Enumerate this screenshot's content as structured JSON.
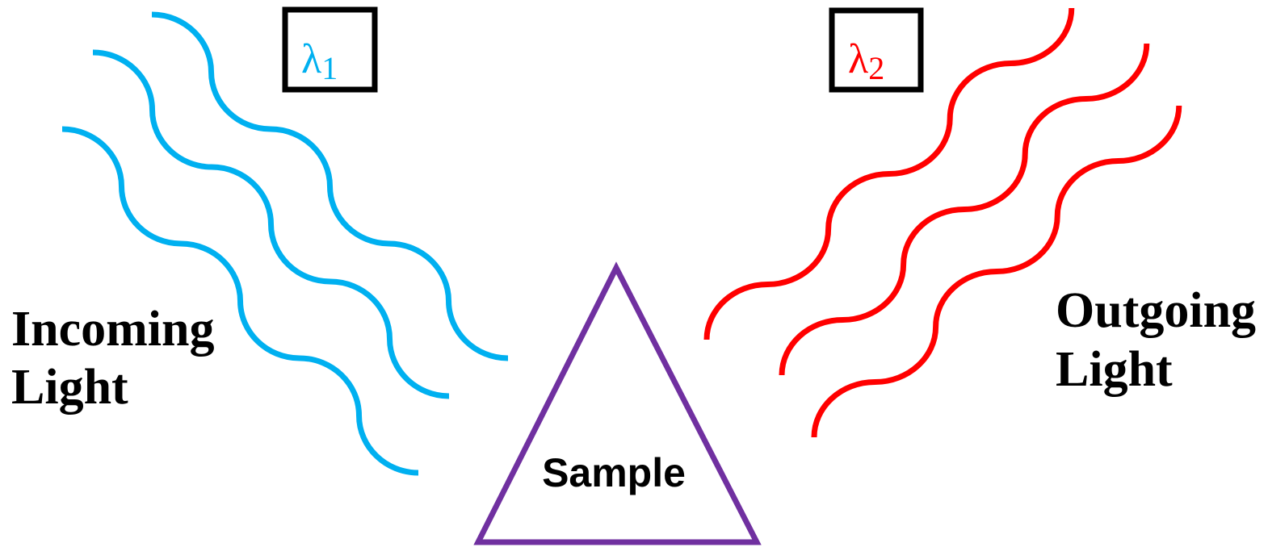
{
  "incoming": {
    "lambda": {
      "symbol": "λ",
      "subscript": "1"
    },
    "label": [
      "Incoming",
      "Light"
    ]
  },
  "outgoing": {
    "lambda": {
      "symbol": "λ",
      "subscript": "2"
    },
    "label": [
      "Outgoing",
      "Light"
    ]
  },
  "sample": {
    "label": "Sample"
  }
}
